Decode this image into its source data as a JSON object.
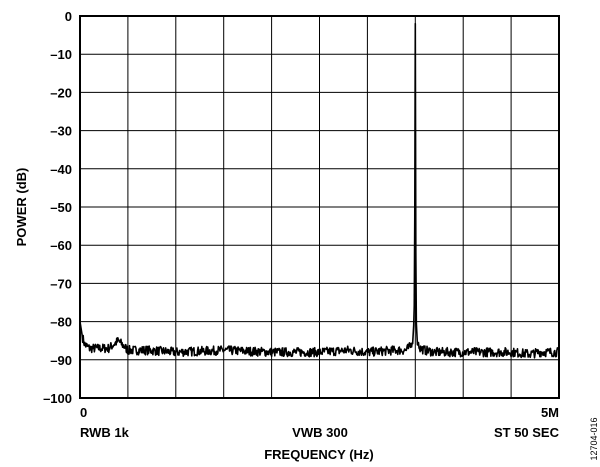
{
  "chart_data": {
    "type": "line",
    "title": "",
    "xlabel": "FREQUENCY (Hz)",
    "ylabel": "POWER (dB)",
    "xlim": [
      0,
      5000000
    ],
    "ylim": [
      -100,
      0
    ],
    "grid": true,
    "x_tick_labels": [
      "0",
      "5M"
    ],
    "y_ticks": [
      0,
      -10,
      -20,
      -30,
      -40,
      -50,
      -60,
      -70,
      -80,
      -90,
      -100
    ],
    "y_tick_labels": [
      "0",
      "–10",
      "–20",
      "–30",
      "–40",
      "–50",
      "–60",
      "–70",
      "–80",
      "–90",
      "–100"
    ],
    "bottom_annotations": [
      "RWB 1k",
      "VWB 300",
      "ST 50 SEC"
    ],
    "figure_id": "12704-016",
    "series": [
      {
        "color": "#000000",
        "x": [
          0,
          25000,
          50000,
          100000,
          200000,
          300000,
          400000,
          500000,
          700000,
          1000000,
          1500000,
          2000000,
          2500000,
          2800000,
          3000000,
          3300000,
          3400000,
          3450000,
          3480000,
          3490000,
          3495000,
          3500000,
          3505000,
          3510000,
          3520000,
          3550000,
          3600000,
          3700000,
          4000000,
          4500000,
          4700000,
          4800000,
          5000000
        ],
        "y": [
          -80,
          -84,
          -86,
          -87,
          -87,
          -87,
          -85,
          -87.5,
          -87.5,
          -88,
          -87.5,
          -88,
          -88,
          -87.5,
          -88,
          -87.5,
          -87.5,
          -86.5,
          -84,
          -75,
          -50,
          -2,
          -60,
          -80,
          -85,
          -87,
          -87.5,
          -88,
          -88,
          -88,
          -88.5,
          -88,
          -88
        ]
      }
    ]
  }
}
